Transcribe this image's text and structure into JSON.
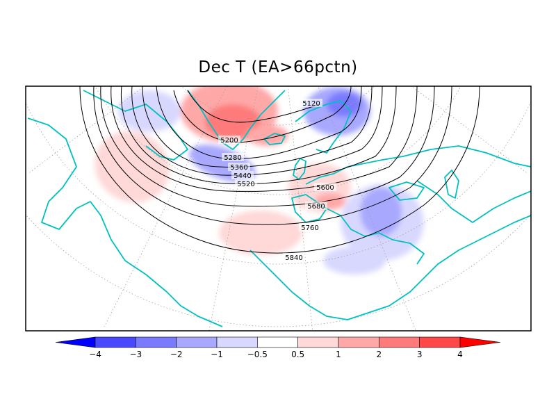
{
  "title": "Dec T (EA>66pctn)",
  "contour_labels": [
    "5120",
    "5200",
    "5280",
    "5360",
    "5440",
    "5520",
    "5600",
    "5680",
    "5760",
    "5840"
  ],
  "colorbar": {
    "boundaries": [
      -4,
      -3,
      -2,
      -1,
      -0.5,
      0.5,
      1,
      2,
      3,
      4
    ],
    "tick_labels": [
      "−4",
      "−3",
      "−2",
      "−1",
      "−0.5",
      "0.5",
      "1",
      "2",
      "3",
      "4"
    ],
    "colors": [
      "#0000ff",
      "#4848ff",
      "#7a7aff",
      "#a8a8ff",
      "#d8d8ff",
      "#ffffff",
      "#ffd8d8",
      "#ffa8a8",
      "#ff7a7a",
      "#ff4848",
      "#ff0000"
    ]
  },
  "colors": {
    "coastline": "#00c0c0",
    "contour": "#000000",
    "grid": "#a0a0a0"
  }
}
